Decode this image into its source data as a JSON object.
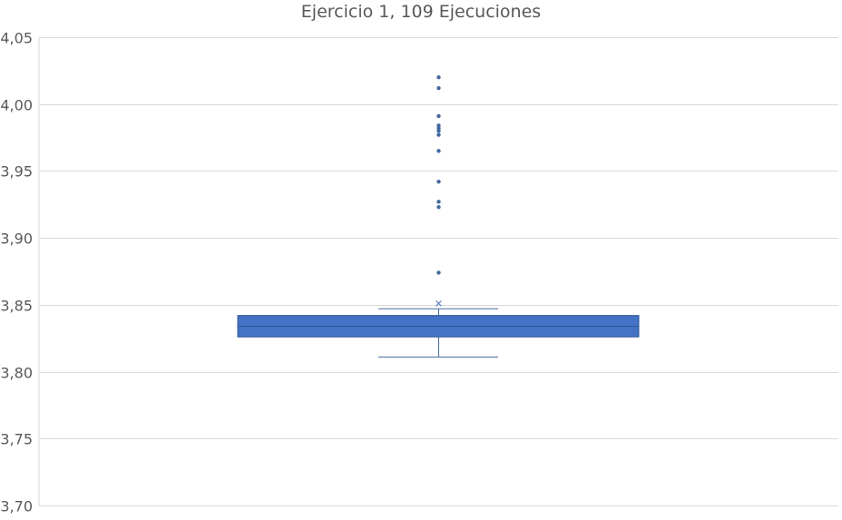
{
  "chart_data": {
    "type": "box",
    "title": "Ejercicio 1, 109 Ejecuciones",
    "xlabel": "",
    "ylabel": "",
    "ylim": [
      3.7,
      4.05
    ],
    "yticks": [
      "3,70",
      "3,75",
      "3,80",
      "3,85",
      "3,90",
      "3,95",
      "4,00",
      "4,05"
    ],
    "grid": true,
    "box": {
      "whisker_low": 3.811,
      "q1": 3.826,
      "median": 3.834,
      "q3": 3.842,
      "whisker_high": 3.847,
      "mean": 3.851
    },
    "outliers": [
      3.874,
      3.923,
      3.927,
      3.942,
      3.965,
      3.977,
      3.98,
      3.982,
      3.984,
      3.991,
      4.012,
      4.02
    ],
    "colors": {
      "box_fill": "#4472C4",
      "box_stroke": "#2F5597",
      "points": "#44699E",
      "grid": "#D9D9D9"
    }
  }
}
